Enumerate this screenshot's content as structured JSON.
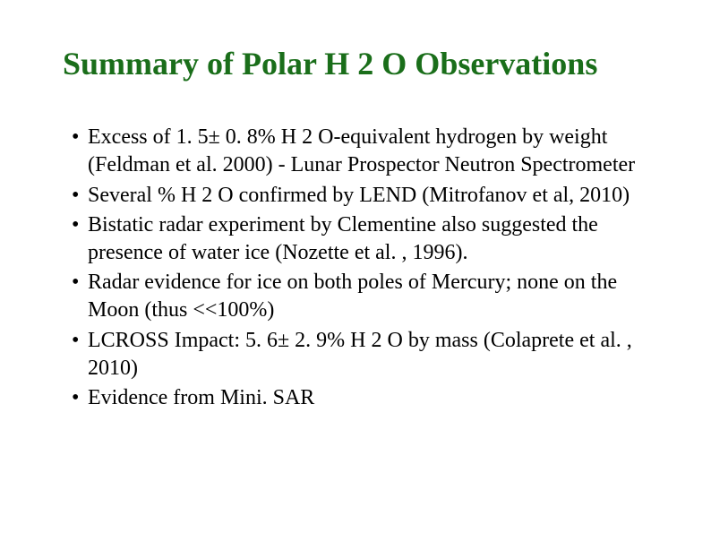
{
  "title": "Summary of Polar H 2 O Observations",
  "title_color": "#1a6e1a",
  "title_fontsize": 36,
  "body_color": "#000000",
  "body_fontsize": 24,
  "background_color": "#ffffff",
  "bullets": [
    {
      "text": "Excess of 1. 5± 0. 8% H 2 O-equivalent hydrogen by weight (Feldman et al. 2000) - Lunar Prospector Neutron Spectrometer"
    },
    {
      "text": "Several % H 2 O confirmed by LEND (Mitrofanov et al, 2010)"
    },
    {
      "text": "Bistatic radar experiment by Clementine also suggested the presence of water ice (Nozette et al. , 1996)."
    },
    {
      "text": "Radar evidence for ice on both poles of Mercury; none on the Moon (thus <<100%)"
    },
    {
      "text": "LCROSS Impact: 5. 6± 2. 9% H 2 O by mass (Colaprete et al. , 2010)"
    },
    {
      "text": "Evidence from Mini. SAR"
    }
  ]
}
